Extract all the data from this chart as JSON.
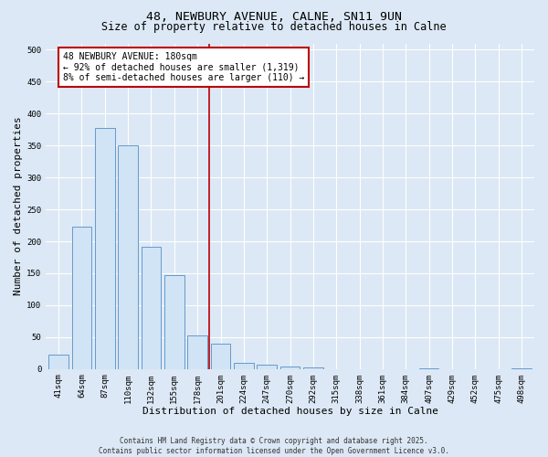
{
  "title_line1": "48, NEWBURY AVENUE, CALNE, SN11 9UN",
  "title_line2": "Size of property relative to detached houses in Calne",
  "xlabel": "Distribution of detached houses by size in Calne",
  "ylabel": "Number of detached properties",
  "categories": [
    "41sqm",
    "64sqm",
    "87sqm",
    "110sqm",
    "132sqm",
    "155sqm",
    "178sqm",
    "201sqm",
    "224sqm",
    "247sqm",
    "270sqm",
    "292sqm",
    "315sqm",
    "338sqm",
    "361sqm",
    "384sqm",
    "407sqm",
    "429sqm",
    "452sqm",
    "475sqm",
    "498sqm"
  ],
  "values": [
    23,
    223,
    378,
    350,
    192,
    147,
    53,
    40,
    10,
    7,
    4,
    2,
    0,
    0,
    0,
    0,
    1,
    0,
    0,
    0,
    1
  ],
  "bar_color": "#d0e4f5",
  "bar_edge_color": "#6699cc",
  "vline_x": 6.5,
  "vline_color": "#bb0000",
  "annotation_text": "48 NEWBURY AVENUE: 180sqm\n← 92% of detached houses are smaller (1,319)\n8% of semi-detached houses are larger (110) →",
  "annotation_box_facecolor": "#ffffff",
  "annotation_box_edgecolor": "#bb0000",
  "ylim": [
    0,
    510
  ],
  "yticks": [
    0,
    50,
    100,
    150,
    200,
    250,
    300,
    350,
    400,
    450,
    500
  ],
  "bg_color": "#dce8f5",
  "grid_color": "#ffffff",
  "footer_line1": "Contains HM Land Registry data © Crown copyright and database right 2025.",
  "footer_line2": "Contains public sector information licensed under the Open Government Licence v3.0.",
  "title_fontsize": 9.5,
  "subtitle_fontsize": 8.5,
  "tick_fontsize": 6.5,
  "label_fontsize": 8,
  "annotation_fontsize": 7,
  "footer_fontsize": 5.5
}
